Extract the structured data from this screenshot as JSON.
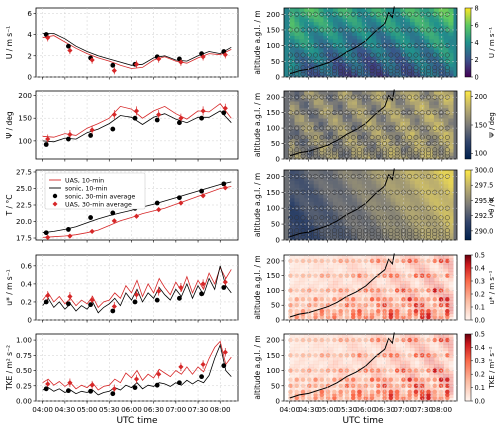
{
  "colors": {
    "uas": "#d62728",
    "sonic": "#000000",
    "mixing_layer": "#000000",
    "marker_edge": "#333333"
  },
  "shared_x_label": "UTC time",
  "time_ticks": [
    "04:00",
    "04:30",
    "05:00",
    "05:30",
    "06:00",
    "06:30",
    "07:00",
    "07:30",
    "08:00"
  ],
  "legend": {
    "uas_10min": "UAS, 10-min",
    "sonic_10min": "sonic, 10-min",
    "sonic_30min": "sonic, 30-min average",
    "uas_30min": "UAS, 30-min average"
  },
  "chart_data": [
    {
      "type": "line",
      "panel": "U",
      "ylabel": "U / m s⁻¹",
      "ylim": [
        0,
        6.5
      ],
      "yticks": [
        0,
        2,
        4,
        6
      ],
      "x": [
        0,
        0.25,
        0.5,
        0.75,
        1,
        1.25,
        1.5,
        1.75,
        2,
        2.25,
        2.5,
        2.75,
        3,
        3.25,
        3.5,
        3.75,
        4,
        4.25
      ],
      "series": [
        {
          "name": "UAS, 10-min",
          "values": [
            3.7,
            3.9,
            3.3,
            2.7,
            2.2,
            1.8,
            1.5,
            1.1,
            0.8,
            0.9,
            1.6,
            1.9,
            1.5,
            1.3,
            1.8,
            2.2,
            2.1,
            2.6
          ]
        },
        {
          "name": "sonic, 10-min",
          "values": [
            4.1,
            4.1,
            3.6,
            2.9,
            2.4,
            2.0,
            1.7,
            1.4,
            1.1,
            1.2,
            1.8,
            2.0,
            1.6,
            1.5,
            2.0,
            2.4,
            2.2,
            2.8
          ]
        }
      ],
      "points": {
        "x": [
          0.08,
          0.58,
          1.08,
          1.58,
          2.08,
          2.58,
          3.08,
          3.58,
          4.08
        ],
        "sonic_30min": [
          4.0,
          2.9,
          1.8,
          1.1,
          1.2,
          1.9,
          1.7,
          2.2,
          2.4
        ],
        "uas_30min": [
          3.7,
          2.5,
          1.6,
          0.6,
          1.2,
          1.7,
          1.4,
          1.9,
          2.1
        ],
        "uas_err": [
          0.35,
          0.35,
          0.35,
          0.35,
          0.35,
          0.35,
          0.35,
          0.35,
          0.35
        ]
      }
    },
    {
      "type": "line",
      "panel": "Psi",
      "ylabel": "Ψ / deg",
      "ylim": [
        60,
        210
      ],
      "yticks": [
        100,
        150,
        200
      ],
      "x": [
        0,
        0.25,
        0.5,
        0.75,
        1,
        1.25,
        1.5,
        1.75,
        2,
        2.25,
        2.5,
        2.75,
        3,
        3.25,
        3.5,
        3.75,
        4,
        4.25
      ],
      "series": [
        {
          "name": "UAS, 10-min",
          "values": [
            110,
            108,
            116,
            112,
            128,
            138,
            150,
            176,
            170,
            150,
            166,
            176,
            160,
            148,
            166,
            164,
            182,
            150
          ]
        },
        {
          "name": "sonic, 10-min",
          "values": [
            100,
            98,
            106,
            104,
            118,
            126,
            138,
            156,
            152,
            136,
            152,
            160,
            148,
            140,
            152,
            152,
            166,
            140
          ]
        }
      ],
      "points": {
        "x": [
          0.08,
          0.58,
          1.08,
          1.58,
          2.08,
          2.58,
          3.08,
          3.58,
          4.08
        ],
        "sonic_30min": [
          92,
          104,
          112,
          126,
          150,
          146,
          140,
          150,
          162
        ],
        "uas_30min": [
          104,
          114,
          124,
          158,
          166,
          158,
          150,
          166,
          172
        ],
        "uas_err": [
          10,
          10,
          10,
          10,
          10,
          10,
          10,
          10,
          10
        ]
      }
    },
    {
      "type": "line",
      "panel": "T",
      "ylabel": "T / °C",
      "ylim": [
        17.2,
        27.8
      ],
      "yticks": [
        17.5,
        20.0,
        22.5,
        25.0,
        27.5
      ],
      "x": [
        0,
        0.25,
        0.5,
        0.75,
        1,
        1.25,
        1.5,
        1.75,
        2,
        2.25,
        2.5,
        2.75,
        3,
        3.25,
        3.5,
        3.75,
        4,
        4.25
      ],
      "series": [
        {
          "name": "UAS, 10-min",
          "values": [
            17.6,
            17.7,
            17.8,
            18.0,
            18.3,
            18.7,
            19.4,
            20.1,
            20.6,
            21.2,
            21.6,
            22.0,
            22.6,
            23.2,
            23.8,
            24.4,
            25.0,
            25.3
          ]
        },
        {
          "name": "sonic, 10-min",
          "values": [
            18.3,
            18.5,
            18.8,
            19.2,
            19.8,
            20.4,
            20.9,
            21.3,
            21.7,
            22.2,
            22.6,
            23.1,
            23.6,
            24.1,
            24.6,
            25.1,
            25.6,
            26.0
          ]
        }
      ],
      "points": {
        "x": [
          0.08,
          0.58,
          1.08,
          1.58,
          2.08,
          2.58,
          3.08,
          3.58,
          4.08
        ],
        "sonic_30min": [
          18.3,
          18.8,
          20.6,
          21.3,
          22.0,
          22.8,
          23.6,
          24.6,
          25.7
        ],
        "uas_30min": [
          17.6,
          17.8,
          18.5,
          20.1,
          20.8,
          21.8,
          22.8,
          23.9,
          25.1
        ],
        "uas_err": [
          0.2,
          0.2,
          0.2,
          0.2,
          0.2,
          0.2,
          0.2,
          0.2,
          0.2
        ]
      }
    },
    {
      "type": "line",
      "panel": "ustar",
      "ylabel": "u* / m s⁻¹",
      "ylim": [
        0,
        0.72
      ],
      "yticks": [
        0,
        0.2,
        0.4,
        0.6
      ],
      "x": [
        0,
        0.125,
        0.25,
        0.375,
        0.5,
        0.625,
        0.75,
        0.875,
        1,
        1.125,
        1.25,
        1.375,
        1.5,
        1.625,
        1.75,
        1.875,
        2,
        2.125,
        2.25,
        2.375,
        2.5,
        2.625,
        2.75,
        2.875,
        3,
        3.125,
        3.25,
        3.375,
        3.5,
        3.625,
        3.75,
        3.875,
        4,
        4.125,
        4.25
      ],
      "series": [
        {
          "name": "UAS, 10-min",
          "values": [
            0.22,
            0.3,
            0.2,
            0.26,
            0.18,
            0.24,
            0.16,
            0.22,
            0.18,
            0.26,
            0.14,
            0.2,
            0.22,
            0.3,
            0.24,
            0.38,
            0.3,
            0.44,
            0.26,
            0.4,
            0.3,
            0.46,
            0.36,
            0.28,
            0.42,
            0.32,
            0.48,
            0.3,
            0.44,
            0.34,
            0.52,
            0.4,
            0.58,
            0.46,
            0.56
          ]
        },
        {
          "name": "sonic, 10-min",
          "values": [
            0.16,
            0.24,
            0.14,
            0.2,
            0.12,
            0.18,
            0.1,
            0.16,
            0.12,
            0.2,
            0.08,
            0.14,
            0.18,
            0.24,
            0.16,
            0.3,
            0.22,
            0.34,
            0.2,
            0.3,
            0.24,
            0.36,
            0.28,
            0.22,
            0.34,
            0.26,
            0.4,
            0.24,
            0.38,
            0.28,
            0.46,
            0.34,
            0.6,
            0.38,
            0.3
          ]
        }
      ],
      "points": {
        "x": [
          0.08,
          0.58,
          1.08,
          1.58,
          2.08,
          2.58,
          3.08,
          3.58,
          4.08
        ],
        "sonic_30min": [
          0.2,
          0.18,
          0.17,
          0.1,
          0.2,
          0.22,
          0.24,
          0.29,
          0.36
        ],
        "uas_30min": [
          0.27,
          0.26,
          0.22,
          0.15,
          0.28,
          0.32,
          0.36,
          0.4,
          0.42
        ],
        "uas_err": [
          0.05,
          0.05,
          0.05,
          0.05,
          0.05,
          0.05,
          0.05,
          0.05,
          0.05
        ]
      }
    },
    {
      "type": "line",
      "panel": "TKE",
      "ylabel": "TKE / m² s⁻²",
      "ylim": [
        0,
        1.1
      ],
      "yticks": [
        0,
        0.25,
        0.5,
        0.75,
        1.0
      ],
      "x": [
        0,
        0.125,
        0.25,
        0.375,
        0.5,
        0.625,
        0.75,
        0.875,
        1,
        1.125,
        1.25,
        1.375,
        1.5,
        1.625,
        1.75,
        1.875,
        2,
        2.125,
        2.25,
        2.375,
        2.5,
        2.625,
        2.75,
        2.875,
        3,
        3.125,
        3.25,
        3.375,
        3.5,
        3.625,
        3.75,
        3.875,
        4,
        4.125,
        4.25
      ],
      "series": [
        {
          "name": "UAS, 10-min",
          "values": [
            0.3,
            0.36,
            0.26,
            0.32,
            0.24,
            0.3,
            0.2,
            0.26,
            0.22,
            0.3,
            0.18,
            0.24,
            0.26,
            0.36,
            0.3,
            0.46,
            0.38,
            0.5,
            0.34,
            0.44,
            0.38,
            0.52,
            0.46,
            0.4,
            0.5,
            0.44,
            0.56,
            0.44,
            0.56,
            0.48,
            0.7,
            0.88,
            0.98,
            0.6,
            0.72
          ]
        },
        {
          "name": "sonic, 10-min",
          "values": [
            0.18,
            0.22,
            0.16,
            0.2,
            0.14,
            0.18,
            0.12,
            0.16,
            0.14,
            0.18,
            0.1,
            0.14,
            0.16,
            0.22,
            0.18,
            0.26,
            0.22,
            0.3,
            0.2,
            0.26,
            0.24,
            0.3,
            0.28,
            0.24,
            0.3,
            0.26,
            0.34,
            0.28,
            0.34,
            0.3,
            0.42,
            0.7,
            0.92,
            0.5,
            0.4
          ]
        }
      ],
      "points": {
        "x": [
          0.08,
          0.58,
          1.08,
          1.58,
          2.08,
          2.58,
          3.08,
          3.58,
          4.08
        ],
        "sonic_30min": [
          0.2,
          0.17,
          0.16,
          0.12,
          0.22,
          0.26,
          0.3,
          0.4,
          0.58
        ],
        "uas_30min": [
          0.28,
          0.3,
          0.26,
          0.2,
          0.36,
          0.44,
          0.56,
          0.6,
          0.8
        ],
        "uas_err": [
          0.07,
          0.07,
          0.07,
          0.07,
          0.07,
          0.07,
          0.07,
          0.07,
          0.07
        ]
      }
    },
    {
      "type": "heatmap",
      "panel": "U_profile",
      "ylabel": "altitude a.g.l. / m",
      "ylim": [
        0,
        220
      ],
      "yticks": [
        0,
        50,
        100,
        150,
        200
      ],
      "colorbar": {
        "label": "U / m s⁻¹",
        "range": [
          0,
          8
        ],
        "ticks": [
          0,
          2,
          4,
          6,
          8
        ],
        "cmap": "viridis"
      }
    },
    {
      "type": "heatmap",
      "panel": "Psi_profile",
      "ylabel": "altitude a.g.l. / m",
      "ylim": [
        0,
        220
      ],
      "yticks": [
        0,
        50,
        100,
        150,
        200
      ],
      "colorbar": {
        "label": "Ψ / deg",
        "range": [
          90,
          210
        ],
        "ticks": [
          100,
          150,
          200
        ],
        "cmap": "cividis"
      }
    },
    {
      "type": "heatmap",
      "panel": "theta_profile",
      "ylabel": "altitude a.g.l. / m",
      "ylim": [
        0,
        220
      ],
      "yticks": [
        0,
        50,
        100,
        150,
        200
      ],
      "colorbar": {
        "label": "θ / K",
        "range": [
          288.5,
          300.0
        ],
        "ticks": [
          290.0,
          292.5,
          295.0,
          297.5,
          300.0
        ],
        "cmap": "cividis"
      }
    },
    {
      "type": "heatmap",
      "panel": "ustar_profile",
      "ylabel": "altitude a.g.l. / m",
      "ylim": [
        0,
        220
      ],
      "yticks": [
        0,
        50,
        100,
        150,
        200
      ],
      "colorbar": {
        "label": "u* / m s⁻¹",
        "range": [
          0,
          0.5
        ],
        "ticks": [
          0.0,
          0.1,
          0.2,
          0.3,
          0.4,
          0.5
        ],
        "cmap": "reds"
      }
    },
    {
      "type": "heatmap",
      "panel": "TKE_profile",
      "ylabel": "altitude a.g.l. / m",
      "ylim": [
        0,
        220
      ],
      "yticks": [
        0,
        50,
        100,
        150,
        200
      ],
      "colorbar": {
        "label": "TKE / m² s⁻²",
        "range": [
          0,
          0.5
        ],
        "ticks": [
          0.0,
          0.1,
          0.2,
          0.3,
          0.4,
          0.5
        ],
        "cmap": "reds"
      }
    }
  ],
  "mixing_layer_height": {
    "x": [
      0,
      0.25,
      0.5,
      0.75,
      1,
      1.25,
      1.5,
      1.75,
      2,
      2.25,
      2.5,
      2.6,
      2.7,
      2.75
    ],
    "z": [
      10,
      20,
      25,
      35,
      45,
      60,
      80,
      95,
      115,
      145,
      170,
      205,
      190,
      230
    ]
  },
  "profile_levels": [
    10,
    20,
    30,
    50,
    70,
    100,
    150,
    200
  ]
}
